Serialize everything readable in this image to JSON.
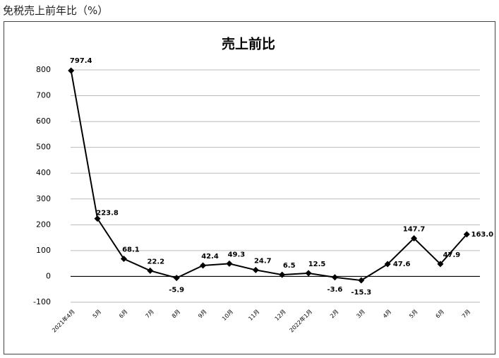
{
  "caption": "免税売上前年比（%）",
  "chart_data": {
    "type": "line",
    "title": "売上前比",
    "categories": [
      "2021年4月",
      "5月",
      "6月",
      "7月",
      "8月",
      "9月",
      "10月",
      "11月",
      "12月",
      "2022年1月",
      "2月",
      "3月",
      "4月",
      "5月",
      "6月",
      "7月"
    ],
    "series": [
      {
        "name": "売上前比",
        "color": "#000000",
        "values": [
          797.4,
          223.8,
          68.1,
          22.2,
          -5.9,
          42.4,
          49.3,
          24.7,
          6.5,
          12.5,
          -3.6,
          -15.3,
          47.6,
          147.7,
          47.9,
          163.0
        ],
        "value_labels": [
          "797.4",
          "223.8",
          "68.1",
          "22.2",
          "-5.9",
          "42.4",
          "49.3",
          "24.7",
          "6.5",
          "12.5",
          "-3.6",
          "-15.3",
          "47.6",
          "147.7",
          "47.9",
          "163.0"
        ]
      }
    ],
    "ylim": [
      -100,
      800
    ],
    "yticks": [
      -100,
      0,
      100,
      200,
      300,
      400,
      500,
      600,
      700,
      800
    ],
    "grid": true
  }
}
